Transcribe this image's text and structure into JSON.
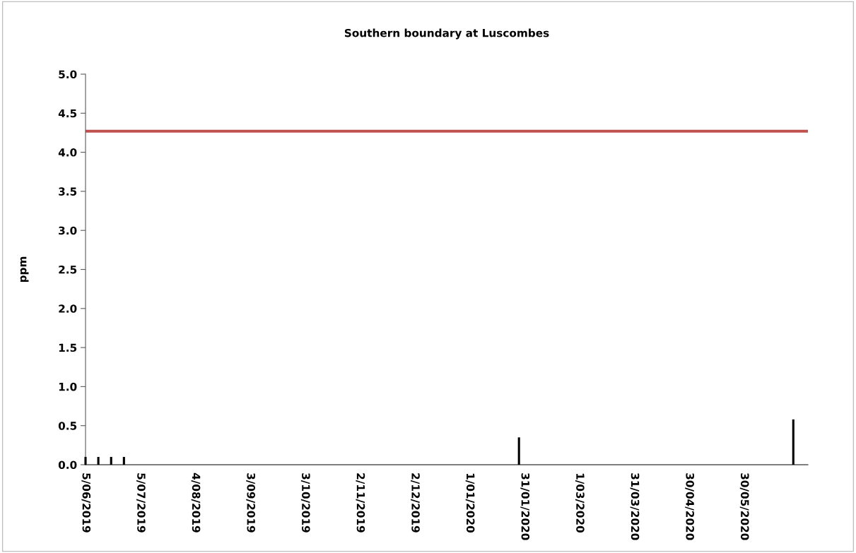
{
  "chart_data": {
    "type": "bar",
    "title": "Southern boundary at Luscombes",
    "ylabel": "ppm",
    "x": [
      "2019-06-05",
      "2019-06-12",
      "2019-06-19",
      "2019-06-26",
      "2020-01-28",
      "2020-06-26"
    ],
    "values": [
      0.1,
      0.1,
      0.1,
      0.1,
      0.35,
      0.58
    ],
    "color": "#000000",
    "xlim": [
      "2019-06-05",
      "2020-07-04"
    ],
    "xticks": [
      {
        "value": "2019-06-05",
        "label": "5/06/2019"
      },
      {
        "value": "2019-07-05",
        "label": "5/07/2019"
      },
      {
        "value": "2019-08-04",
        "label": "4/08/2019"
      },
      {
        "value": "2019-09-03",
        "label": "3/09/2019"
      },
      {
        "value": "2019-10-03",
        "label": "3/10/2019"
      },
      {
        "value": "2019-11-02",
        "label": "2/11/2019"
      },
      {
        "value": "2019-12-02",
        "label": "2/12/2019"
      },
      {
        "value": "2020-01-01",
        "label": "1/01/2020"
      },
      {
        "value": "2020-01-31",
        "label": "31/01/2020"
      },
      {
        "value": "2020-03-01",
        "label": "1/03/2020"
      },
      {
        "value": "2020-03-31",
        "label": "31/03/2020"
      },
      {
        "value": "2020-04-30",
        "label": "30/04/2020"
      },
      {
        "value": "2020-05-30",
        "label": "30/05/2020"
      }
    ],
    "ylim": [
      0,
      5
    ],
    "yticks": [
      {
        "value": 0,
        "label": "0.0"
      },
      {
        "value": 0.5,
        "label": "0.5"
      },
      {
        "value": 1,
        "label": "1.0"
      },
      {
        "value": 1.5,
        "label": "1.5"
      },
      {
        "value": 2,
        "label": "2.0"
      },
      {
        "value": 2.5,
        "label": "2.5"
      },
      {
        "value": 3,
        "label": "3.0"
      },
      {
        "value": 3.5,
        "label": "3.5"
      },
      {
        "value": 4,
        "label": "4.0"
      },
      {
        "value": 4.5,
        "label": "4.5"
      },
      {
        "value": 5,
        "label": "5.0"
      }
    ],
    "ref_lines": [
      {
        "axis": "y",
        "value": 4.27,
        "color": "#c0504d"
      }
    ],
    "grid": false,
    "legend": false
  }
}
